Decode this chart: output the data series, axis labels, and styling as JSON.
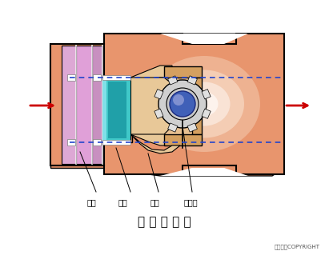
{
  "title": "凸 轮 挠 曲 阀",
  "copyright": "东方仿真COPYRIGHT",
  "labels": [
    "阀座",
    "阀芯",
    "挠臂",
    "旋转轴"
  ],
  "bg_color": "#ffffff",
  "body_color": "#E8956D",
  "inner_light1": "#F5D0B0",
  "inner_light2": "#FDF0E8",
  "pink_color": "#E0A0D8",
  "pink_dark": "#C888C0",
  "cyan_color": "#40C8C8",
  "cyan_dark": "#20A0A8",
  "cam_color": "#E8C898",
  "bracket_color": "#D4A060",
  "gear_color": "#D0D0D0",
  "blue_dot": "#4060B8",
  "blue_light": "#8090D0",
  "arrow_color": "#CC0000",
  "dashed_color": "#2244CC",
  "line_color": "#000000"
}
